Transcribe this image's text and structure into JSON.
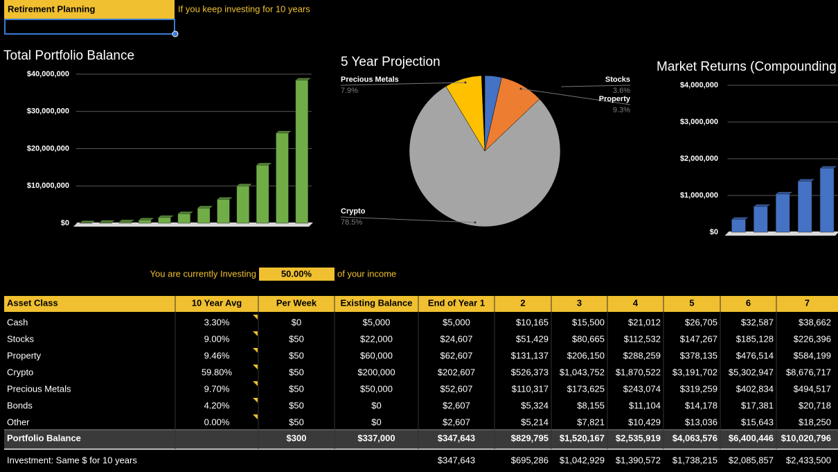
{
  "header": {
    "title": "Retirement Planning",
    "note": "If you keep investing for 10 years"
  },
  "chart_data": [
    {
      "type": "bar",
      "title": "Total Portfolio Balance",
      "color": "#70ad47",
      "categories": [
        null,
        null,
        null,
        null,
        null,
        null,
        null,
        null,
        null,
        null,
        null,
        null
      ],
      "values": [
        100000,
        200000,
        350000,
        830000,
        1520000,
        2540000,
        4060000,
        6400000,
        10000000,
        15600000,
        24200000,
        38400000
      ],
      "ylim": [
        0,
        40000000
      ],
      "yticks": [
        {
          "value": 0,
          "label": "$0"
        },
        {
          "value": 10000000,
          "label": "$10,000,000"
        },
        {
          "value": 20000000,
          "label": "$20,000,000"
        },
        {
          "value": 30000000,
          "label": "$30,000,000"
        },
        {
          "value": 40000000,
          "label": "$40,000,000"
        }
      ],
      "grid": true
    },
    {
      "type": "pie",
      "title": "5 Year Projection",
      "categories": [
        "Stocks",
        "Property",
        "Crypto",
        "Precious Metals"
      ],
      "values": [
        3.6,
        9.3,
        78.5,
        7.9
      ],
      "value_labels": [
        "3.6%",
        "9.3%",
        "78.5%",
        "7.9%"
      ],
      "colors": [
        "#4472c4",
        "#ed7d31",
        "#a5a5a5",
        "#ffc000"
      ]
    },
    {
      "type": "bar",
      "title": "Market Returns (Compounding",
      "color": "#4472c4",
      "categories": [
        null,
        null,
        null,
        null,
        null
      ],
      "values": [
        350000,
        700000,
        1040000,
        1390000,
        1740000
      ],
      "ylim": [
        0,
        4000000
      ],
      "yticks": [
        {
          "value": 0,
          "label": "$0"
        },
        {
          "value": 1000000,
          "label": "$1,000,000"
        },
        {
          "value": 2000000,
          "label": "$2,000,000"
        },
        {
          "value": 3000000,
          "label": "$3,000,000"
        },
        {
          "value": 4000000,
          "label": "$4,000,000"
        }
      ],
      "grid": true
    }
  ],
  "income": {
    "prefix": "You are currently Investing",
    "rate": "50.00%",
    "suffix": "of your income"
  },
  "table": {
    "columns": [
      "Asset Class",
      "10 Year Avg",
      "Per Week",
      "Existing Balance",
      "End of Year 1",
      "2",
      "3",
      "4",
      "5",
      "6",
      "7"
    ],
    "rows": [
      [
        "Cash",
        "3.30%",
        "$0",
        "$5,000",
        "$5,000",
        "$10,165",
        "$15,500",
        "$21,012",
        "$26,705",
        "$32,587",
        "$38,662"
      ],
      [
        "Stocks",
        "9.00%",
        "$50",
        "$22,000",
        "$24,607",
        "$51,429",
        "$80,665",
        "$112,532",
        "$147,267",
        "$185,128",
        "$226,396"
      ],
      [
        "Property",
        "9.46%",
        "$50",
        "$60,000",
        "$62,607",
        "$131,137",
        "$206,150",
        "$288,259",
        "$378,135",
        "$476,514",
        "$584,199"
      ],
      [
        "Crypto",
        "59.80%",
        "$50",
        "$200,000",
        "$202,607",
        "$526,373",
        "$1,043,752",
        "$1,870,522",
        "$3,191,702",
        "$5,302,947",
        "$8,676,717"
      ],
      [
        "Precious Metals",
        "9.70%",
        "$50",
        "$50,000",
        "$52,607",
        "$110,317",
        "$173,625",
        "$243,074",
        "$319,259",
        "$402,834",
        "$494,517"
      ],
      [
        "Bonds",
        "4.20%",
        "$50",
        "$0",
        "$2,607",
        "$5,324",
        "$8,155",
        "$11,104",
        "$14,178",
        "$17,381",
        "$20,718"
      ],
      [
        "Other",
        "0.00%",
        "$50",
        "$0",
        "$2,607",
        "$5,214",
        "$7,821",
        "$10,429",
        "$13,036",
        "$15,643",
        "$18,250"
      ],
      [
        "Portfolio Balance",
        null,
        "$300",
        "$337,000",
        "$347,643",
        "$829,795",
        "$1,520,167",
        "$2,535,919",
        "$4,063,576",
        "$6,400,446",
        "$10,020,796"
      ],
      [
        "Investment: Same $ for 10 years",
        null,
        null,
        null,
        "$347,643",
        "$695,286",
        "$1,042,929",
        "$1,390,572",
        "$1,738,215",
        "$2,085,857",
        "$2,433,500"
      ]
    ]
  }
}
